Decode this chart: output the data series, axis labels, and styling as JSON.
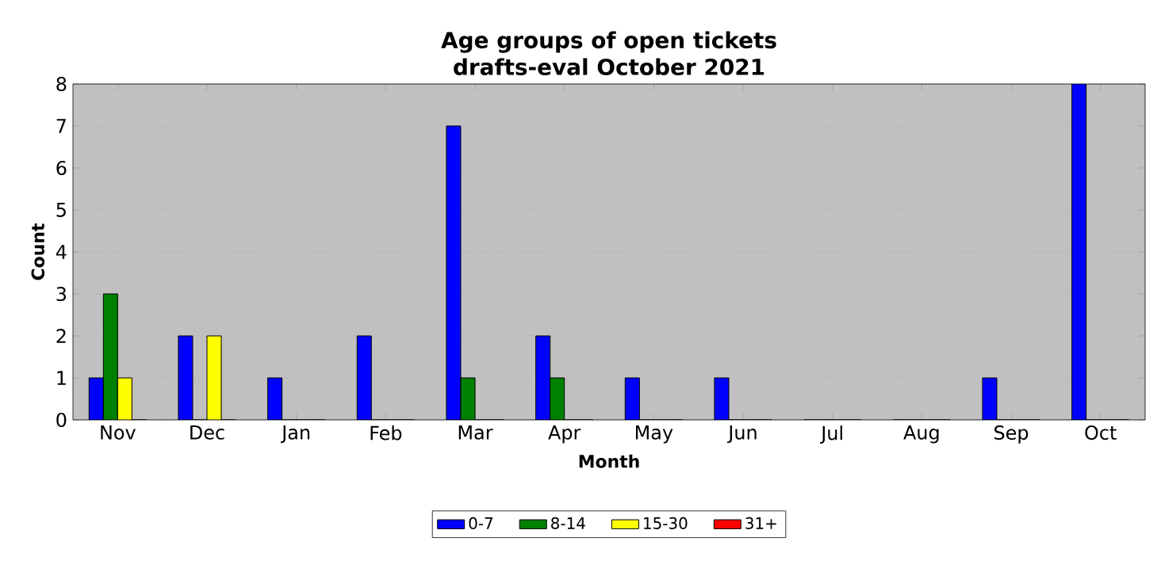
{
  "chart_data": {
    "type": "bar",
    "title": "Age groups of open tickets",
    "subtitle": "drafts-eval October 2021",
    "xlabel": "Month",
    "ylabel": "Count",
    "categories": [
      "Nov",
      "Dec",
      "Jan",
      "Feb",
      "Mar",
      "Apr",
      "May",
      "Jun",
      "Jul",
      "Aug",
      "Sep",
      "Oct"
    ],
    "series": [
      {
        "name": "0-7",
        "color": "#0000ff",
        "values": [
          1,
          2,
          1,
          2,
          7,
          2,
          1,
          1,
          0,
          0,
          1,
          8
        ]
      },
      {
        "name": "8-14",
        "color": "#008000",
        "values": [
          3,
          0,
          0,
          0,
          1,
          1,
          0,
          0,
          0,
          0,
          0,
          0
        ]
      },
      {
        "name": "15-30",
        "color": "#ffff00",
        "values": [
          1,
          2,
          0,
          0,
          0,
          0,
          0,
          0,
          0,
          0,
          0,
          0
        ]
      },
      {
        "name": "31+",
        "color": "#ff0000",
        "values": [
          0,
          0,
          0,
          0,
          0,
          0,
          0,
          0,
          0,
          0,
          0,
          0
        ]
      }
    ],
    "ylim": [
      0,
      8
    ],
    "yticks": [
      0,
      1,
      2,
      3,
      4,
      5,
      6,
      7,
      8
    ],
    "grid": "y",
    "legend": "bottom"
  }
}
